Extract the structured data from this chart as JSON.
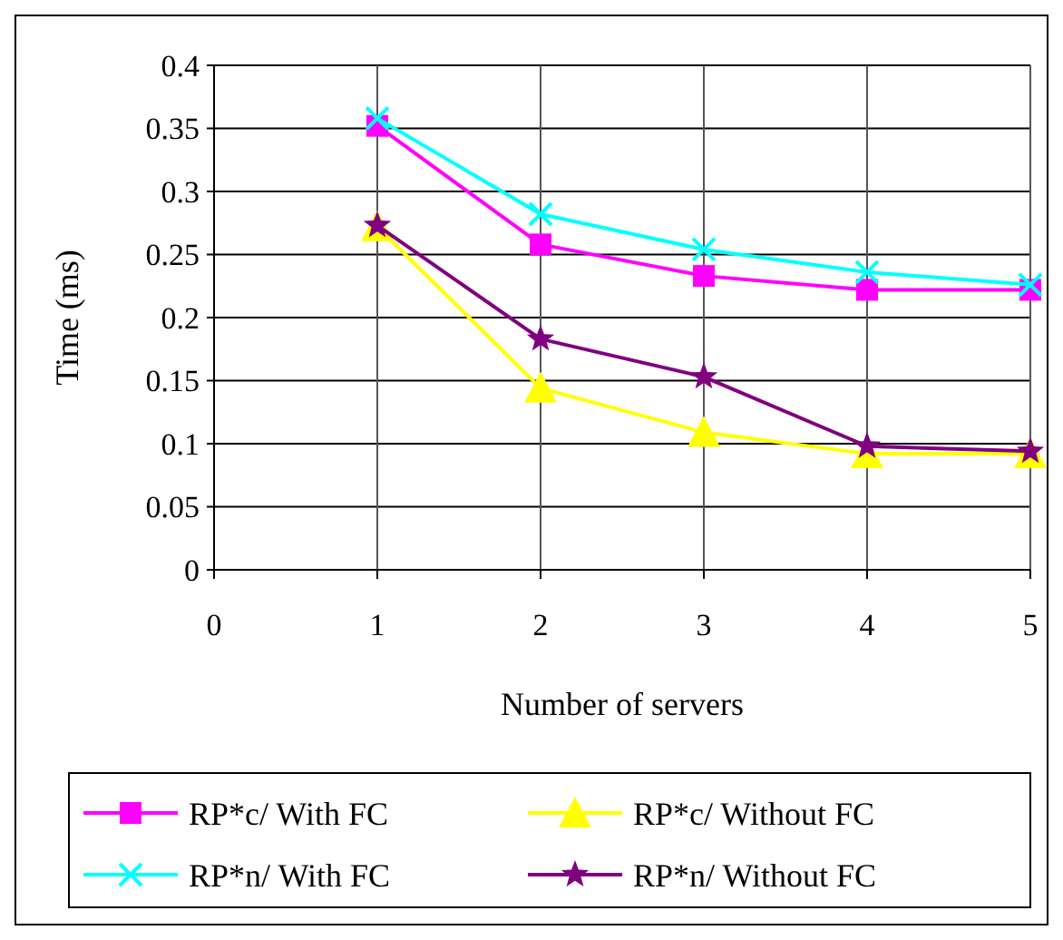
{
  "chart_data": {
    "type": "line",
    "xlabel": "Number of servers",
    "ylabel": "Time (ms)",
    "x": [
      1,
      2,
      3,
      4,
      5
    ],
    "xlim": [
      0,
      5
    ],
    "xticks": [
      0,
      1,
      2,
      3,
      4,
      5
    ],
    "ylim": [
      0,
      0.4
    ],
    "yticks": [
      0,
      0.05,
      0.1,
      0.15,
      0.2,
      0.25,
      0.3,
      0.35,
      0.4
    ],
    "grid": true,
    "legend": "bottom",
    "series": [
      {
        "name": "RP*c/ With FC",
        "color": "#ff00ff",
        "marker": "square",
        "values": [
          0.352,
          0.258,
          0.233,
          0.222,
          0.222
        ]
      },
      {
        "name": "RP*c/ Without FC",
        "color": "#ffff00",
        "marker": "triangle",
        "values": [
          0.272,
          0.144,
          0.109,
          0.092,
          0.092
        ]
      },
      {
        "name": "RP*n/ With FC",
        "color": "#00ffff",
        "marker": "cross",
        "values": [
          0.358,
          0.282,
          0.254,
          0.236,
          0.226
        ]
      },
      {
        "name": "RP*n/ Without FC",
        "color": "#800080",
        "marker": "star",
        "values": [
          0.273,
          0.183,
          0.153,
          0.098,
          0.094
        ]
      }
    ]
  }
}
